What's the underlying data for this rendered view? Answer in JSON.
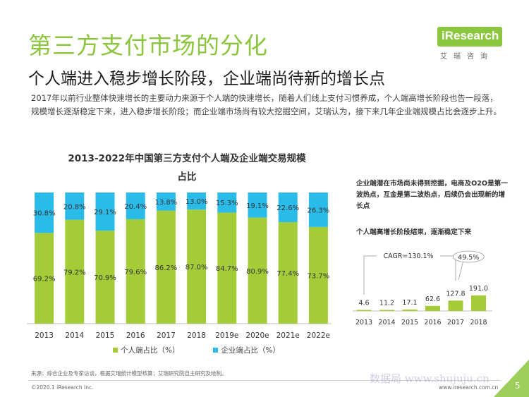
{
  "header": {
    "title": "第三方支付市场的分化",
    "subtitle": "个人端进入稳步增长阶段，企业端尚待新的增长点",
    "description": "2017年以前行业整体快速增长的主要动力来源于个人端的快速增长，随着人们线上支付习惯养成，个人端高增长阶段也告一段落，规模增长逐渐稳定下来，进入稳步增长阶段；而企业端市场尚有较大挖掘空间，艾瑞认为，接下来几年企业端规模占比会逐步上升。"
  },
  "logo": {
    "text": "iResearch",
    "cn": "艾瑞咨询"
  },
  "colors": {
    "green": "#a4cc39",
    "blue": "#2bbbe9",
    "brand": "#8cc63f"
  },
  "chart_data": [
    {
      "type": "bar",
      "stacked": true,
      "title_line1": "2013-2022年中国第三方支付个人端及企业端交易规模",
      "title_line2": "占比",
      "categories": [
        "2013",
        "2014",
        "2015",
        "2016",
        "2017",
        "2018",
        "2019e",
        "2020e",
        "2021e",
        "2022e"
      ],
      "series": [
        {
          "name": "个人端占比（%）",
          "values": [
            69.2,
            79.2,
            70.9,
            79.6,
            86.2,
            87.0,
            84.7,
            80.9,
            77.4,
            73.7
          ],
          "labels": [
            "69.2%",
            "79.2%",
            "70.9%",
            "79.6%",
            "86.2%",
            "87.0%",
            "84.7%",
            "80.9%",
            "77.4%",
            "73.7%"
          ]
        },
        {
          "name": "企业端占比（%）",
          "values": [
            30.8,
            20.8,
            29.1,
            20.4,
            13.8,
            13.0,
            15.3,
            19.1,
            22.6,
            26.3
          ],
          "labels": [
            "30.8%",
            "20.8%",
            "29.1%",
            "20.4%",
            "13.8%",
            "13.0%",
            "15.3%",
            "19.1%",
            "22.6%",
            "26.3%"
          ]
        }
      ],
      "ylim": [
        0,
        100
      ]
    },
    {
      "type": "bar",
      "categories": [
        "2013",
        "2014",
        "2015",
        "2016",
        "2017",
        "2018"
      ],
      "values": [
        4.6,
        11.2,
        17.1,
        62.6,
        127.8,
        191.0
      ],
      "labels": [
        "4.6",
        "11.2",
        "17.1",
        "62.6",
        "127.8",
        "191.0"
      ],
      "annotations": {
        "cagr": "CAGR=130.1%",
        "growth": "49.5%"
      }
    }
  ],
  "notes": {
    "enterprise": "企业端潜在市场尚未得到挖掘，电商及O2O是第一波热点，互金是第二波热点，后续仍会出现新的增长点",
    "personal": "个人端高增长阶段结束，逐渐稳定下来"
  },
  "footer": {
    "source": "来源：综合企业及专家访谈，根据艾瑞统计模型核算；艾瑞研究院自主研究及绘制。",
    "copyright": "©2020.1 iResearch Inc.",
    "site": "www.iresearch.com.cn",
    "page": "5",
    "watermark": "数据局 www.shujuju.cn"
  }
}
